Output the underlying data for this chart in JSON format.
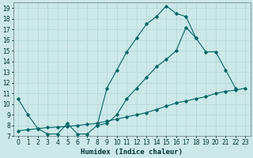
{
  "xlabel": "Humidex (Indice chaleur)",
  "bg_color": "#cce8e8",
  "grid_color": "#aacccc",
  "line_color": "#006666",
  "xlim": [
    -0.5,
    23.5
  ],
  "ylim": [
    7,
    19.5
  ],
  "xticks": [
    0,
    1,
    2,
    3,
    4,
    5,
    6,
    7,
    8,
    9,
    10,
    11,
    12,
    13,
    14,
    15,
    16,
    17,
    18,
    19,
    20,
    21,
    22,
    23
  ],
  "yticks": [
    7,
    8,
    9,
    10,
    11,
    12,
    13,
    14,
    15,
    16,
    17,
    18,
    19
  ],
  "line1_x": [
    0,
    1,
    2,
    3,
    4,
    5,
    6,
    7,
    8,
    9,
    10,
    11,
    12,
    13,
    14,
    15,
    16,
    17,
    18
  ],
  "line1_y": [
    10.5,
    9.0,
    7.7,
    7.2,
    7.2,
    8.2,
    7.2,
    7.2,
    8.0,
    11.5,
    13.2,
    14.9,
    16.2,
    17.5,
    18.2,
    19.2,
    18.5,
    18.2,
    16.2
  ],
  "line2_x": [
    8,
    9,
    10,
    11,
    12,
    13,
    14,
    15,
    16,
    17,
    18,
    19,
    20,
    21,
    22
  ],
  "line2_y": [
    8.0,
    8.2,
    9.0,
    10.5,
    11.5,
    12.5,
    13.5,
    14.2,
    15.0,
    17.2,
    16.2,
    14.9,
    14.9,
    13.2,
    11.5
  ],
  "line3_x": [
    0,
    1,
    2,
    3,
    4,
    5,
    6,
    7,
    8,
    9,
    10,
    11,
    12,
    13,
    14,
    15,
    16,
    17,
    18,
    19,
    20,
    21,
    22,
    23
  ],
  "line3_y": [
    7.5,
    7.6,
    7.7,
    7.8,
    7.85,
    7.9,
    8.0,
    8.1,
    8.2,
    8.4,
    8.6,
    8.8,
    9.0,
    9.2,
    9.5,
    9.8,
    10.1,
    10.3,
    10.5,
    10.7,
    11.0,
    11.2,
    11.3,
    11.5
  ]
}
